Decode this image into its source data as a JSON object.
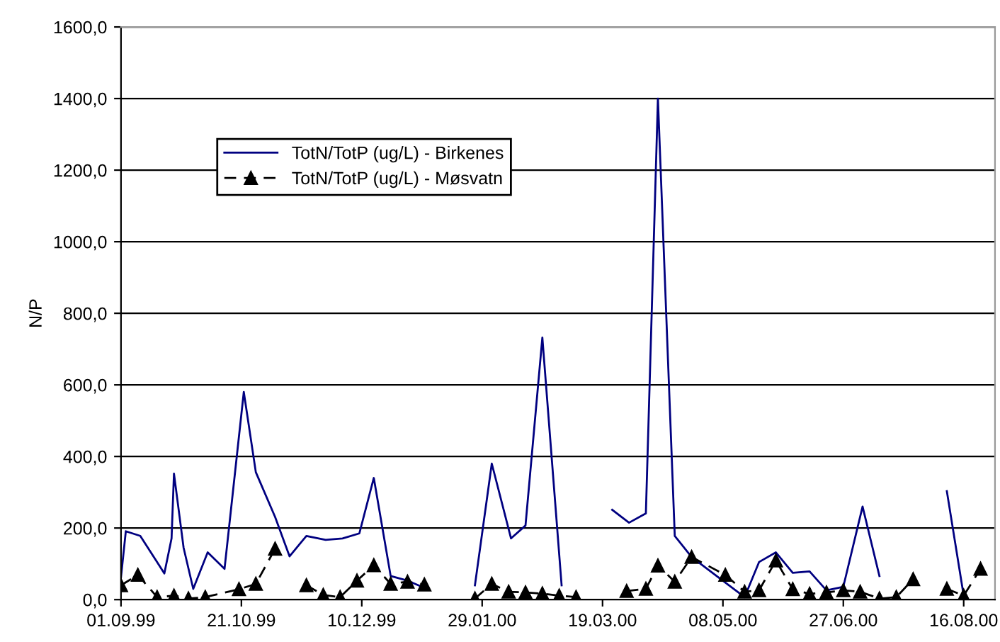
{
  "chart_data": {
    "type": "line",
    "ylabel": "N/P",
    "ylim": [
      0,
      1600
    ],
    "yticks": [
      {
        "value": 0,
        "label": "0,0"
      },
      {
        "value": 200,
        "label": "200,0"
      },
      {
        "value": 400,
        "label": "400,0"
      },
      {
        "value": 600,
        "label": "600,0"
      },
      {
        "value": 800,
        "label": "800,0"
      },
      {
        "value": 1000,
        "label": "1000,0"
      },
      {
        "value": 1200,
        "label": "1200,0"
      },
      {
        "value": 1400,
        "label": "1400,0"
      },
      {
        "value": 1600,
        "label": "1600,0"
      }
    ],
    "xlim": [
      "1999-09-01",
      "2000-08-29"
    ],
    "xticks": [
      {
        "value": "1999-09-01",
        "label": "01.09.99"
      },
      {
        "value": "1999-10-21",
        "label": "21.10.99"
      },
      {
        "value": "1999-12-10",
        "label": "10.12.99"
      },
      {
        "value": "2000-01-29",
        "label": "29.01.00"
      },
      {
        "value": "2000-03-19",
        "label": "19.03.00"
      },
      {
        "value": "2000-05-08",
        "label": "08.05.00"
      },
      {
        "value": "2000-06-27",
        "label": "27.06.00"
      },
      {
        "value": "2000-08-16",
        "label": "16.08.00"
      }
    ],
    "grid": "y",
    "legend": "top left",
    "series": [
      {
        "name": "TotN/TotP (ug/L) - Birkenes",
        "color": "#000080",
        "marker": "none",
        "line_style": "solid",
        "x": [
          "1999-09-01",
          "1999-09-03",
          "1999-09-09",
          "1999-09-16",
          "1999-09-19",
          "1999-09-22",
          "1999-09-23",
          "1999-09-27",
          "1999-10-01",
          "1999-10-07",
          "1999-10-14",
          "1999-10-22",
          "1999-10-27",
          "1999-11-04",
          "1999-11-10",
          "1999-11-17",
          "1999-11-25",
          "1999-12-02",
          "1999-12-09",
          "1999-12-15",
          "1999-12-22",
          "1999-12-29",
          "2000-01-05",
          "2000-01-15",
          "2000-01-26",
          "2000-02-02",
          "2000-02-10",
          "2000-02-16",
          "2000-02-23",
          "2000-03-02",
          "2000-03-12",
          "2000-03-23",
          "2000-03-30",
          "2000-04-06",
          "2000-04-11",
          "2000-04-18",
          "2000-04-25",
          "2000-05-17",
          "2000-05-23",
          "2000-05-30",
          "2000-06-06",
          "2000-06-13",
          "2000-06-20",
          "2000-06-27",
          "2000-07-05",
          "2000-07-12",
          "2000-07-25",
          "2000-08-09",
          "2000-08-16"
        ],
        "values": [
          63,
          191,
          178,
          105,
          73,
          171,
          352,
          145,
          30,
          132,
          86,
          580,
          356,
          231,
          121,
          178,
          167,
          171,
          185,
          340,
          66,
          53,
          33,
          null,
          40,
          380,
          171,
          207,
          732,
          40,
          null,
          251,
          215,
          241,
          1400,
          178,
          119,
          7,
          105,
          132,
          75,
          79,
          26,
          36,
          260,
          66,
          null,
          303,
          11
        ]
      },
      {
        "name": "TotN/TotP (ug/L) - Møsvatn",
        "color": "#000000",
        "marker": "triangle",
        "line_style": "dashed",
        "x": [
          "1999-09-01",
          "1999-09-08",
          "1999-09-16",
          "1999-09-23",
          "1999-09-29",
          "1999-10-06",
          "1999-10-20",
          "1999-10-27",
          "1999-11-04",
          "1999-11-10",
          "1999-11-17",
          "1999-11-24",
          "1999-12-01",
          "1999-12-08",
          "1999-12-15",
          "1999-12-22",
          "1999-12-29",
          "2000-01-05",
          "2000-01-15",
          "2000-01-26",
          "2000-02-02",
          "2000-02-09",
          "2000-02-16",
          "2000-02-23",
          "2000-03-01",
          "2000-03-08",
          "2000-03-18",
          "2000-03-29",
          "2000-04-06",
          "2000-04-11",
          "2000-04-18",
          "2000-04-25",
          "2000-05-09",
          "2000-05-17",
          "2000-05-23",
          "2000-05-30",
          "2000-06-06",
          "2000-06-13",
          "2000-06-20",
          "2000-06-27",
          "2000-07-04",
          "2000-07-12",
          "2000-07-19",
          "2000-07-26",
          "2000-08-02",
          "2000-08-09",
          "2000-08-16",
          "2000-08-23"
        ],
        "values": [
          40,
          69,
          7,
          11,
          3,
          7,
          29,
          44,
          142,
          null,
          40,
          13,
          7,
          53,
          96,
          44,
          50,
          42,
          null,
          3,
          44,
          22,
          20,
          17,
          11,
          7,
          null,
          24,
          30,
          95,
          50,
          119,
          69,
          22,
          26,
          109,
          29,
          16,
          20,
          26,
          22,
          3,
          7,
          57,
          null,
          30,
          11,
          86
        ]
      }
    ]
  }
}
